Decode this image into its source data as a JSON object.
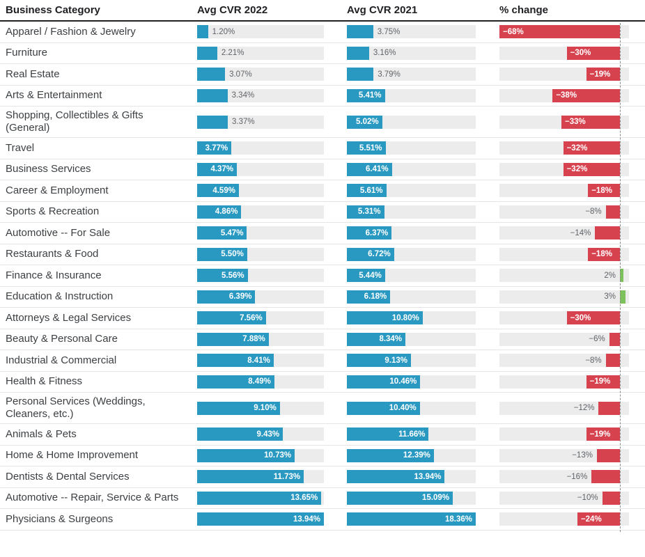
{
  "chart_data": {
    "type": "bar",
    "orientation": "horizontal",
    "title": "",
    "legend": "none",
    "grid": "off",
    "columns": [
      "Business Category",
      "Avg CVR 2022",
      "Avg CVR 2021",
      "% change"
    ],
    "categories": [
      "Apparel / Fashion & Jewelry",
      "Furniture",
      "Real Estate",
      "Arts & Entertainment",
      "Shopping, Collectibles & Gifts (General)",
      "Travel",
      "Business Services",
      "Career & Employment",
      "Sports & Recreation",
      "Automotive -- For Sale",
      "Restaurants & Food",
      "Finance & Insurance",
      "Education & Instruction",
      "Attorneys & Legal Services",
      "Beauty & Personal Care",
      "Industrial & Commercial",
      "Health & Fitness",
      "Personal Services (Weddings, Cleaners, etc.)",
      "Animals & Pets",
      "Home & Home Improvement",
      "Dentists & Dental Services",
      "Automotive -- Repair, Service & Parts",
      "Physicians & Surgeons"
    ],
    "series": [
      {
        "name": "Avg CVR 2022",
        "unit": "%",
        "axis_max": 13.94,
        "color": "#2a99c2",
        "values": [
          1.2,
          2.21,
          3.07,
          3.34,
          3.37,
          3.77,
          4.37,
          4.59,
          4.86,
          5.47,
          5.5,
          5.56,
          6.39,
          7.56,
          7.88,
          8.41,
          8.49,
          9.1,
          9.43,
          10.73,
          11.73,
          13.65,
          13.94
        ],
        "labels": [
          "1.20%",
          "2.21%",
          "3.07%",
          "3.34%",
          "3.37%",
          "3.77%",
          "4.37%",
          "4.59%",
          "4.86%",
          "5.47%",
          "5.50%",
          "5.56%",
          "6.39%",
          "7.56%",
          "7.88%",
          "8.41%",
          "8.49%",
          "9.10%",
          "9.43%",
          "10.73%",
          "11.73%",
          "13.65%",
          "13.94%"
        ]
      },
      {
        "name": "Avg CVR 2021",
        "unit": "%",
        "axis_max": 18.36,
        "color": "#2a99c2",
        "values": [
          3.75,
          3.16,
          3.79,
          5.41,
          5.02,
          5.51,
          6.41,
          5.61,
          5.31,
          6.37,
          6.72,
          5.44,
          6.18,
          10.8,
          8.34,
          9.13,
          10.46,
          10.4,
          11.66,
          12.39,
          13.94,
          15.09,
          18.36
        ],
        "labels": [
          "3.75%",
          "3.16%",
          "3.79%",
          "5.41%",
          "5.02%",
          "5.51%",
          "6.41%",
          "5.61%",
          "5.31%",
          "6.37%",
          "6.72%",
          "5.44%",
          "6.18%",
          "10.80%",
          "8.34%",
          "9.13%",
          "10.46%",
          "10.40%",
          "11.66%",
          "12.39%",
          "13.94%",
          "15.09%",
          "18.36%"
        ]
      },
      {
        "name": "% change",
        "unit": "%",
        "axis_range": [
          -68,
          5
        ],
        "color_negative": "#d7424f",
        "color_positive": "#7cc15c",
        "values": [
          -68,
          -30,
          -19,
          -38,
          -33,
          -32,
          -32,
          -18,
          -8,
          -14,
          -18,
          2,
          3,
          -30,
          -6,
          -8,
          -19,
          -12,
          -19,
          -13,
          -16,
          -10,
          -24
        ],
        "labels": [
          "−68%",
          "−30%",
          "−19%",
          "−38%",
          "−33%",
          "−32%",
          "−32%",
          "−18%",
          "−8%",
          "−14%",
          "−18%",
          "2%",
          "3%",
          "−30%",
          "−6%",
          "−8%",
          "−19%",
          "−12%",
          "−19%",
          "−13%",
          "−16%",
          "−10%",
          "−24%"
        ]
      }
    ],
    "colors": {
      "bar_track": "#ececec",
      "row_separator": "#e5e5e5",
      "header_rule": "#212121",
      "value_label_outside": "#5f6368",
      "value_label_inside": "#ffffff"
    }
  }
}
